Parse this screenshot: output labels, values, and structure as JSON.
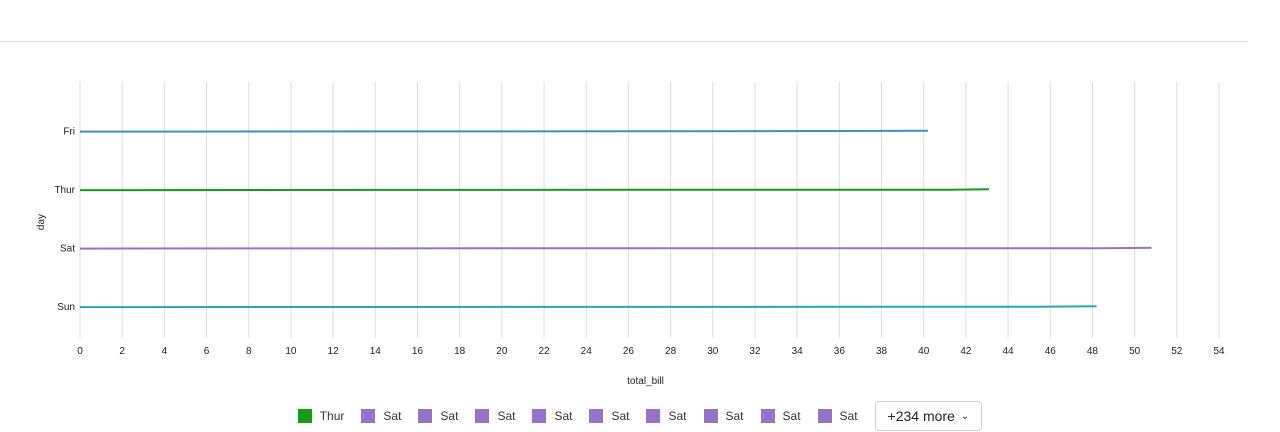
{
  "chart_data": {
    "type": "line",
    "orientation": "horizontal",
    "xlabel": "total_bill",
    "ylabel": "day",
    "xlim": [
      0,
      54
    ],
    "x_ticks": [
      0,
      2,
      4,
      6,
      8,
      10,
      12,
      14,
      16,
      18,
      20,
      22,
      24,
      26,
      28,
      30,
      32,
      34,
      36,
      38,
      40,
      42,
      44,
      46,
      48,
      50,
      52,
      54
    ],
    "categories": [
      "Fri",
      "Thur",
      "Sat",
      "Sun"
    ],
    "grid": true,
    "series": [
      {
        "category": "Fri",
        "color": "#3d8fc9",
        "x": [
          0,
          29,
          40.2
        ]
      },
      {
        "category": "Thur",
        "color": "#1a9a1a",
        "x": [
          0,
          35,
          41.2,
          43.1
        ]
      },
      {
        "category": "Sat",
        "color": "#9673c8",
        "x": [
          0,
          20,
          48.3,
          50.8
        ]
      },
      {
        "category": "Sun",
        "color": "#2aa7b0",
        "x": [
          0,
          45.4,
          48.2
        ]
      }
    ]
  },
  "legend": {
    "items": [
      {
        "label": "Thur",
        "color": "#1a9a1a"
      },
      {
        "label": "Sat",
        "color": "#9673c8"
      },
      {
        "label": "Sat",
        "color": "#9673c8"
      },
      {
        "label": "Sat",
        "color": "#9673c8"
      },
      {
        "label": "Sat",
        "color": "#9673c8"
      },
      {
        "label": "Sat",
        "color": "#9673c8"
      },
      {
        "label": "Sat",
        "color": "#9673c8"
      },
      {
        "label": "Sat",
        "color": "#9673c8"
      },
      {
        "label": "Sat",
        "color": "#9673c8"
      },
      {
        "label": "Sat",
        "color": "#9673c8"
      }
    ],
    "more_label": "+234 more",
    "more_icon": "chevron-down-icon"
  }
}
